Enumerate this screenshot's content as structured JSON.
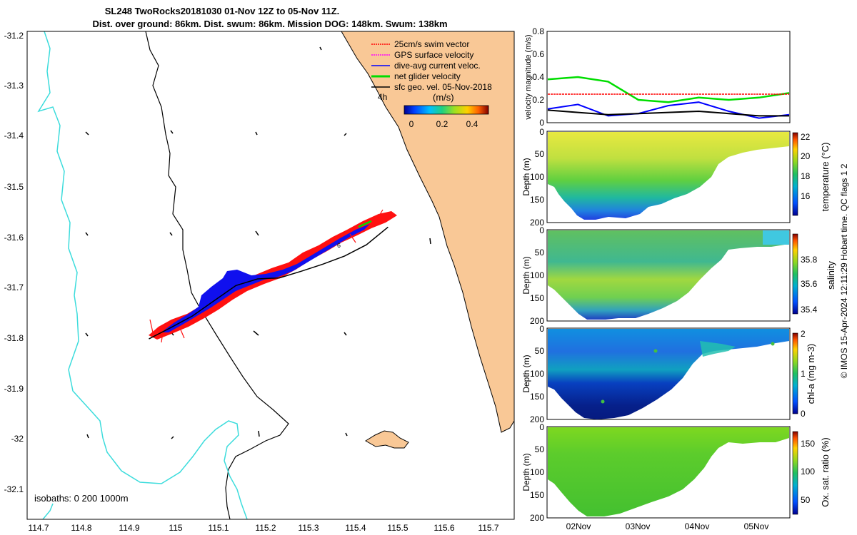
{
  "header": {
    "title_line1": "SL248 TwoRocks20181030 01-Nov 12Z to 05-Nov 11Z.",
    "title_line2": "Dist. over ground: 86km. Dist. swum: 86km. Mission DOG: 148km. Swum: 138km"
  },
  "colors": {
    "land": "#f9c896",
    "isobath_shallow": "#3cdcdc",
    "isobath_deep": "#000000",
    "swim_vector": "#ff0000",
    "gps_surface": "#ff00ff",
    "dive_avg_current": "#0000ff",
    "net_glider": "#00dd00",
    "sfc_geo": "#000000"
  },
  "map": {
    "legend": [
      {
        "label": "25cm/s swim vector",
        "color": "#ff0000"
      },
      {
        "label": "GPS surface velocity",
        "color": "#ff00ff"
      },
      {
        "label": "dive-avg current veloc.",
        "color": "#0000ff"
      },
      {
        "label": "net glider velocity",
        "color": "#00dd00"
      },
      {
        "label": "sfc geo. vel. 05-Nov-2018",
        "color": "#000000"
      }
    ],
    "time_marker": "4h",
    "colorbar_unit": "(m/s)",
    "colorbar_ticks": [
      "0",
      "0.2",
      "0.4"
    ],
    "isobath_note": "isobaths: 0   200  1000m",
    "x_ticks": [
      "114.7",
      "114.8",
      "114.9",
      "115",
      "115.1",
      "115.2",
      "115.3",
      "115.4",
      "115.5",
      "115.6",
      "115.7"
    ],
    "y_ticks": [
      "-31.2",
      "-31.3",
      "-31.4",
      "-31.5",
      "-31.6",
      "-31.7",
      "-31.8",
      "-31.9",
      "-32",
      "-32.1"
    ],
    "marker_label": "6"
  },
  "panels": {
    "velocity": {
      "ylabel": "velocity magnitude (m/s)",
      "y_ticks": [
        "0.8",
        "0.6",
        "0.4",
        "0.2",
        "0"
      ]
    },
    "temperature": {
      "ylabel": "Depth (m)",
      "cb_label": "temperature (°C)",
      "y_ticks": [
        "0",
        "50",
        "100",
        "150",
        "200"
      ],
      "cb_ticks": [
        "22",
        "20",
        "18",
        "16"
      ]
    },
    "salinity": {
      "ylabel": "Depth (m)",
      "cb_label": "salinity",
      "y_ticks": [
        "0",
        "50",
        "100",
        "150",
        "200"
      ],
      "cb_ticks": [
        "35.8",
        "35.6",
        "35.4"
      ]
    },
    "chla": {
      "ylabel": "Depth (m)",
      "cb_label": "chl-a (mg m-3)",
      "y_ticks": [
        "0",
        "50",
        "100",
        "150",
        "200"
      ],
      "cb_ticks": [
        "2",
        "1",
        "0"
      ]
    },
    "oxygen": {
      "ylabel": "Depth (m)",
      "cb_label": "Ox. sat. ratio (%)",
      "y_ticks": [
        "0",
        "50",
        "100",
        "150",
        "200"
      ],
      "cb_ticks": [
        "150",
        "100",
        "50"
      ]
    },
    "x_ticks": [
      "02Nov",
      "03Nov",
      "04Nov",
      "05Nov"
    ]
  },
  "footer": "© IMOS 15-Apr-2024 12:11:29 Hobart time. QC flags 1  2",
  "chart_data": [
    {
      "type": "scatter",
      "title": "SL248 TwoRocks20181030 01-Nov 12Z to 05-Nov 11Z.",
      "xlabel": "",
      "ylabel": "",
      "xlim": [
        114.67,
        115.79
      ],
      "ylim": [
        -32.15,
        -31.19
      ],
      "track": {
        "x": [
          114.95,
          115.0,
          115.05,
          115.1,
          115.15,
          115.2,
          115.25,
          115.3,
          115.35,
          115.4,
          115.45,
          115.5
        ],
        "y": [
          -31.795,
          -31.773,
          -31.75,
          -31.72,
          -31.69,
          -31.677,
          -31.675,
          -31.662,
          -31.648,
          -31.632,
          -31.61,
          -31.575
        ]
      },
      "legend": [
        "25cm/s swim vector",
        "GPS surface velocity",
        "dive-avg current veloc.",
        "net glider velocity",
        "sfc geo. vel. 05-Nov-2018"
      ],
      "legend_position": "top-right"
    },
    {
      "type": "line",
      "ylabel": "velocity magnitude (m/s)",
      "ylim": [
        0,
        0.8
      ],
      "x": [
        "01Nov12Z",
        "02Nov00Z",
        "02Nov12Z",
        "03Nov00Z",
        "03Nov12Z",
        "04Nov00Z",
        "04Nov12Z",
        "05Nov00Z",
        "05Nov11Z"
      ],
      "series": [
        {
          "name": "net glider velocity",
          "values": [
            0.38,
            0.4,
            0.36,
            0.2,
            0.18,
            0.22,
            0.2,
            0.22,
            0.26
          ]
        },
        {
          "name": "25cm/s swim vector",
          "values": [
            0.25,
            0.25,
            0.25,
            0.25,
            0.25,
            0.25,
            0.25,
            0.25,
            0.25
          ]
        },
        {
          "name": "dive-avg current veloc.",
          "values": [
            0.12,
            0.16,
            0.06,
            0.08,
            0.15,
            0.18,
            0.1,
            0.04,
            0.07
          ]
        },
        {
          "name": "sfc geo. vel. 05-Nov-2018",
          "values": [
            0.11,
            0.09,
            0.07,
            0.08,
            0.09,
            0.1,
            0.08,
            0.06,
            0.06
          ]
        }
      ]
    },
    {
      "type": "heatmap",
      "ylabel": "Depth (m)",
      "ylim": [
        200,
        0
      ],
      "cb_label": "temperature (°C)",
      "clim": [
        14.5,
        22
      ]
    },
    {
      "type": "heatmap",
      "ylabel": "Depth (m)",
      "ylim": [
        200,
        0
      ],
      "cb_label": "salinity",
      "clim": [
        35.3,
        35.95
      ]
    },
    {
      "type": "heatmap",
      "ylabel": "Depth (m)",
      "ylim": [
        200,
        0
      ],
      "cb_label": "chl-a (mg m-3)",
      "clim": [
        0,
        2
      ]
    },
    {
      "type": "heatmap",
      "ylabel": "Depth (m)",
      "ylim": [
        200,
        0
      ],
      "cb_label": "Ox. sat. ratio (%)",
      "clim": [
        20,
        175
      ]
    }
  ]
}
